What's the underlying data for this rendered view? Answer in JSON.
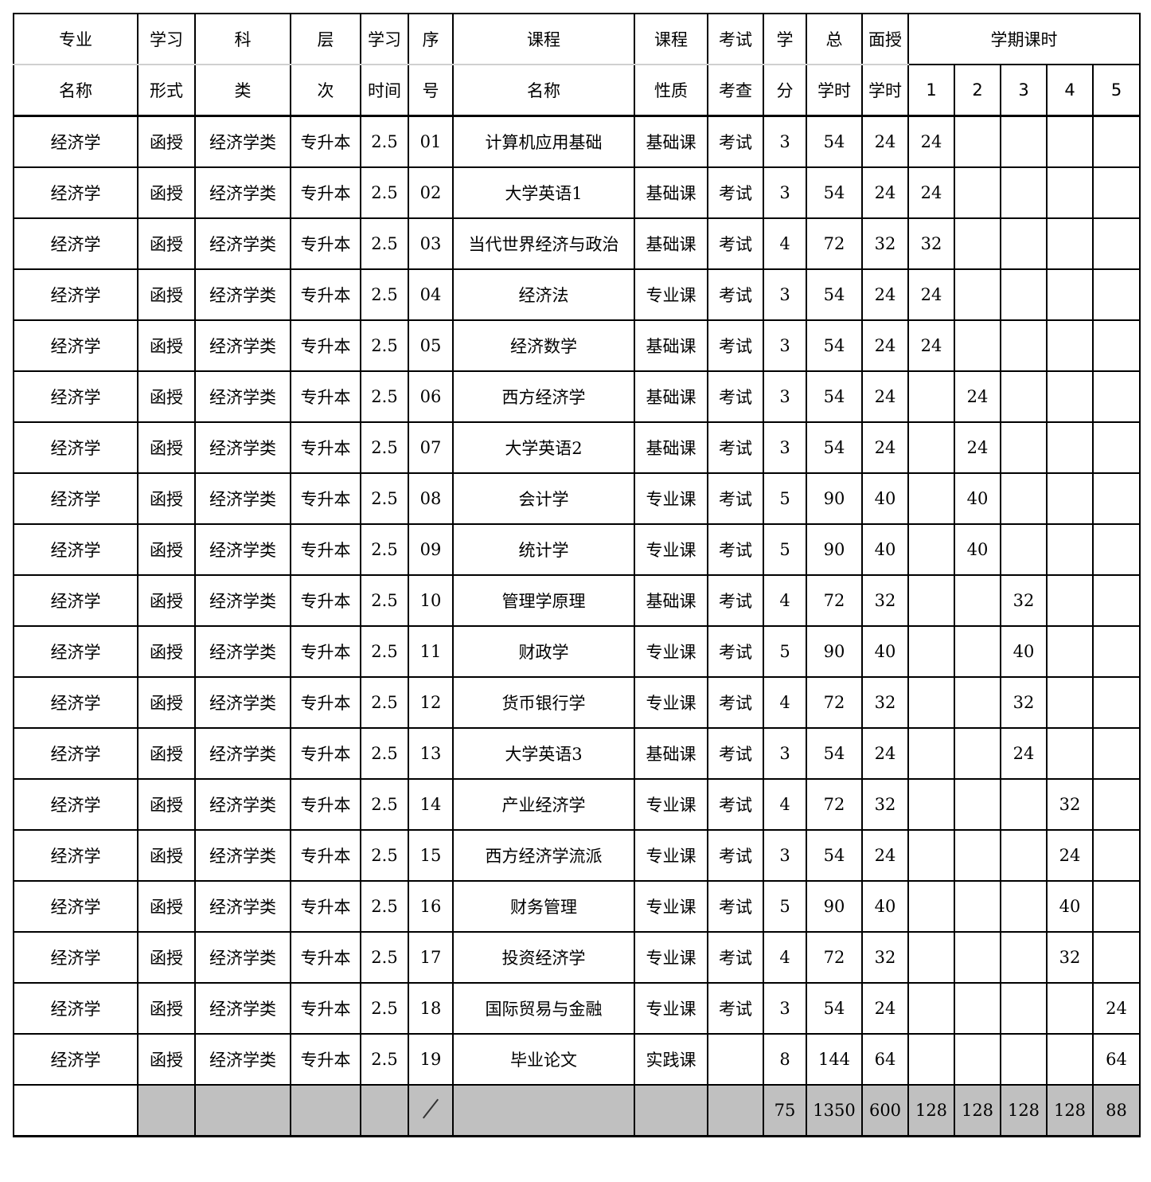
{
  "header": {
    "top": [
      "专业",
      "学习",
      "科",
      "层",
      "学习",
      "序",
      "课程",
      "课程",
      "考试",
      "学",
      "总",
      "面授"
    ],
    "bottom": [
      "名称",
      "形式",
      "类",
      "次",
      "时间",
      "号",
      "名称",
      "性质",
      "考查",
      "分",
      "学时",
      "学时"
    ],
    "semester_title": "学期课时",
    "semesters": [
      "1",
      "2",
      "3",
      "4",
      "5"
    ]
  },
  "rows": [
    [
      "经济学",
      "函授",
      "经济学类",
      "专升本",
      "2.5",
      "01",
      "计算机应用基础",
      "基础课",
      "考试",
      "3",
      "54",
      "24",
      "24",
      "",
      "",
      "",
      ""
    ],
    [
      "经济学",
      "函授",
      "经济学类",
      "专升本",
      "2.5",
      "02",
      "大学英语1",
      "基础课",
      "考试",
      "3",
      "54",
      "24",
      "24",
      "",
      "",
      "",
      ""
    ],
    [
      "经济学",
      "函授",
      "经济学类",
      "专升本",
      "2.5",
      "03",
      "当代世界经济与政治",
      "基础课",
      "考试",
      "4",
      "72",
      "32",
      "32",
      "",
      "",
      "",
      ""
    ],
    [
      "经济学",
      "函授",
      "经济学类",
      "专升本",
      "2.5",
      "04",
      "经济法",
      "专业课",
      "考试",
      "3",
      "54",
      "24",
      "24",
      "",
      "",
      "",
      ""
    ],
    [
      "经济学",
      "函授",
      "经济学类",
      "专升本",
      "2.5",
      "05",
      "经济数学",
      "基础课",
      "考试",
      "3",
      "54",
      "24",
      "24",
      "",
      "",
      "",
      ""
    ],
    [
      "经济学",
      "函授",
      "经济学类",
      "专升本",
      "2.5",
      "06",
      "西方经济学",
      "基础课",
      "考试",
      "3",
      "54",
      "24",
      "",
      "24",
      "",
      "",
      ""
    ],
    [
      "经济学",
      "函授",
      "经济学类",
      "专升本",
      "2.5",
      "07",
      "大学英语2",
      "基础课",
      "考试",
      "3",
      "54",
      "24",
      "",
      "24",
      "",
      "",
      ""
    ],
    [
      "经济学",
      "函授",
      "经济学类",
      "专升本",
      "2.5",
      "08",
      "会计学",
      "专业课",
      "考试",
      "5",
      "90",
      "40",
      "",
      "40",
      "",
      "",
      ""
    ],
    [
      "经济学",
      "函授",
      "经济学类",
      "专升本",
      "2.5",
      "09",
      "统计学",
      "专业课",
      "考试",
      "5",
      "90",
      "40",
      "",
      "40",
      "",
      "",
      ""
    ],
    [
      "经济学",
      "函授",
      "经济学类",
      "专升本",
      "2.5",
      "10",
      "管理学原理",
      "基础课",
      "考试",
      "4",
      "72",
      "32",
      "",
      "",
      "32",
      "",
      ""
    ],
    [
      "经济学",
      "函授",
      "经济学类",
      "专升本",
      "2.5",
      "11",
      "财政学",
      "专业课",
      "考试",
      "5",
      "90",
      "40",
      "",
      "",
      "40",
      "",
      ""
    ],
    [
      "经济学",
      "函授",
      "经济学类",
      "专升本",
      "2.5",
      "12",
      "货币银行学",
      "专业课",
      "考试",
      "4",
      "72",
      "32",
      "",
      "",
      "32",
      "",
      ""
    ],
    [
      "经济学",
      "函授",
      "经济学类",
      "专升本",
      "2.5",
      "13",
      "大学英语3",
      "基础课",
      "考试",
      "3",
      "54",
      "24",
      "",
      "",
      "24",
      "",
      ""
    ],
    [
      "经济学",
      "函授",
      "经济学类",
      "专升本",
      "2.5",
      "14",
      "产业经济学",
      "专业课",
      "考试",
      "4",
      "72",
      "32",
      "",
      "",
      "",
      "32",
      ""
    ],
    [
      "经济学",
      "函授",
      "经济学类",
      "专升本",
      "2.5",
      "15",
      "西方经济学流派",
      "专业课",
      "考试",
      "3",
      "54",
      "24",
      "",
      "",
      "",
      "24",
      ""
    ],
    [
      "经济学",
      "函授",
      "经济学类",
      "专升本",
      "2.5",
      "16",
      "财务管理",
      "专业课",
      "考试",
      "5",
      "90",
      "40",
      "",
      "",
      "",
      "40",
      ""
    ],
    [
      "经济学",
      "函授",
      "经济学类",
      "专升本",
      "2.5",
      "17",
      "投资经济学",
      "专业课",
      "考试",
      "4",
      "72",
      "32",
      "",
      "",
      "",
      "32",
      ""
    ],
    [
      "经济学",
      "函授",
      "经济学类",
      "专升本",
      "2.5",
      "18",
      "国际贸易与金融",
      "专业课",
      "考试",
      "3",
      "54",
      "24",
      "",
      "",
      "",
      "",
      "24"
    ],
    [
      "经济学",
      "函授",
      "经济学类",
      "专升本",
      "2.5",
      "19",
      "毕业论文",
      "实践课",
      "",
      "8",
      "144",
      "64",
      "",
      "",
      "",
      "",
      "64"
    ]
  ],
  "totals": [
    "",
    "",
    "",
    "",
    "",
    "",
    "",
    "",
    "",
    "75",
    "1350",
    "600",
    "128",
    "128",
    "128",
    "128",
    "88"
  ],
  "colors": {
    "total_row_bg": "#c0c0c0",
    "header_divider": "#d0d0d0"
  }
}
